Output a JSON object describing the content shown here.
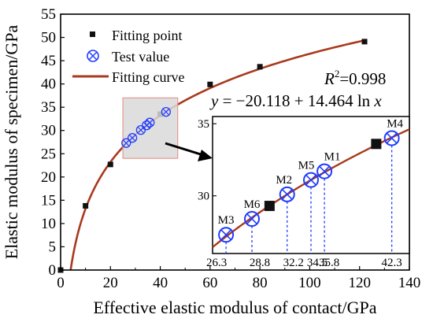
{
  "chart_data": {
    "type": "scatter",
    "xlabel": "Effective elastic modulus of contact/GPa",
    "ylabel": "Elastic modulus of specimen/GPa",
    "xlim": [
      0,
      140
    ],
    "ylim": [
      0,
      55
    ],
    "xticks": [
      0,
      20,
      40,
      60,
      80,
      100,
      120,
      140
    ],
    "yticks": [
      0,
      5,
      10,
      15,
      20,
      25,
      30,
      35,
      40,
      45,
      50,
      55
    ],
    "xtick_labels": [
      "0",
      "20",
      "40",
      "60",
      "80",
      "100",
      "120",
      "140"
    ],
    "ytick_labels": [
      "0",
      "5",
      "10",
      "15",
      "20",
      "25",
      "30",
      "35",
      "40",
      "45",
      "50",
      "55"
    ],
    "grid": false,
    "legend_position": "top-left",
    "series": [
      {
        "name": "Fitting point",
        "marker": "square",
        "color": "#111111",
        "x": [
          0,
          10,
          20,
          40,
          60,
          80,
          122
        ],
        "y": [
          0,
          13.8,
          22.7,
          33.5,
          39.9,
          43.7,
          49.1
        ]
      },
      {
        "name": "Test value",
        "marker": "circle-x",
        "color": "#1f3cff",
        "x": [
          26.3,
          28.8,
          32.2,
          34.5,
          35.8,
          42.3
        ],
        "y": [
          27.3,
          28.4,
          30.1,
          31.1,
          31.7,
          34.0
        ]
      },
      {
        "name": "Fitting curve",
        "type": "line",
        "color": "#a83a1e",
        "equation": "y = -20.118 + 14.464 ln x",
        "a": -20.118,
        "b": 14.464,
        "x_range": [
          4.01,
          122
        ]
      }
    ],
    "annotations": {
      "r2_prefix": "R",
      "r2_sup": "2",
      "r2_value": "=0.998",
      "equation": {
        "y": "y",
        "eq": " = −20.118 + 14.464 ln ",
        "x": "x"
      }
    },
    "inset": {
      "source_xlim": [
        25,
        44
      ],
      "source_ylim": [
        26,
        35.5
      ],
      "zoom_box_xlim": [
        25,
        47
      ],
      "zoom_box_ylim": [
        24,
        37
      ],
      "yticks": [
        30,
        35
      ],
      "ytick_labels": [
        "30",
        "35"
      ],
      "fitting_points": [
        {
          "x": 30.5,
          "y": 29.3
        },
        {
          "x": 40.8,
          "y": 33.6
        }
      ],
      "test_points": [
        {
          "label": "M3",
          "x": 26.3,
          "y": 27.3,
          "value_label": "26.3"
        },
        {
          "label": "M6",
          "x": 28.8,
          "y": 28.4,
          "value_label": "28.8"
        },
        {
          "label": "M2",
          "x": 32.2,
          "y": 30.1,
          "value_label": "32.2"
        },
        {
          "label": "M5",
          "x": 34.5,
          "y": 31.1,
          "value_label": "34.5"
        },
        {
          "label": "M1",
          "x": 35.8,
          "y": 31.7,
          "value_label": "35.8"
        },
        {
          "label": "M4",
          "x": 42.3,
          "y": 34.0,
          "value_label": "42.3"
        }
      ]
    }
  }
}
